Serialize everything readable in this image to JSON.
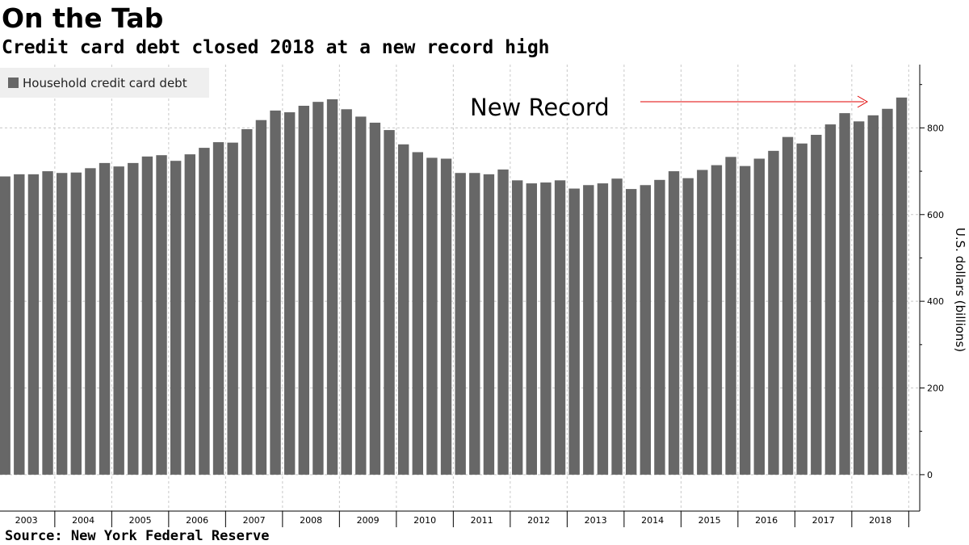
{
  "header": {
    "title": "On the Tab",
    "subtitle": "Credit card debt closed 2018 at a new record high"
  },
  "footer": {
    "source": "Source: New York Federal Reserve"
  },
  "colors": {
    "bar": "#676767",
    "annotation_arrow": "#e00000",
    "grid": "#c8c8c8",
    "legend_bg": "#efefef"
  },
  "chart_data": {
    "type": "bar",
    "title": "Credit card debt closed 2018 at a new record high",
    "ylabel": "U.S. dollars (billions)",
    "ylim": [
      -84,
      946
    ],
    "yticks": [
      0,
      200,
      400,
      600,
      800
    ],
    "grid": true,
    "legend_position": "top-left",
    "annotation": {
      "text": "New Record",
      "points_to": "2018 Q4"
    },
    "years": [
      "2003",
      "2004",
      "2005",
      "2006",
      "2007",
      "2008",
      "2009",
      "2010",
      "2011",
      "2012",
      "2013",
      "2014",
      "2015",
      "2016",
      "2017",
      "2018"
    ],
    "series": [
      {
        "name": "Household credit card debt",
        "values": [
          688,
          693,
          693,
          700,
          696,
          697,
          707,
          719,
          711,
          719,
          734,
          737,
          724,
          739,
          754,
          767,
          766,
          797,
          818,
          840,
          836,
          851,
          860,
          866,
          843,
          826,
          812,
          795,
          762,
          744,
          731,
          729,
          696,
          696,
          693,
          704,
          679,
          672,
          674,
          679,
          660,
          668,
          672,
          683,
          659,
          668,
          680,
          700,
          684,
          703,
          714,
          733,
          712,
          729,
          747,
          779,
          764,
          784,
          808,
          834,
          815,
          829,
          844,
          870
        ]
      }
    ]
  }
}
